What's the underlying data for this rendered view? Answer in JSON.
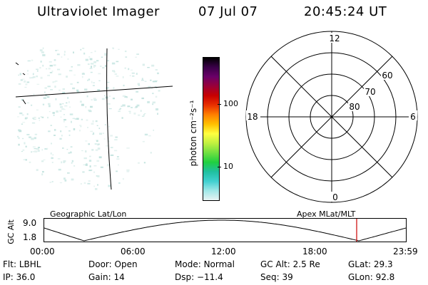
{
  "header": {
    "title": "Ultraviolet Imager",
    "date": "07 Jul 07",
    "time": "20:45:24 UT"
  },
  "colorbar": {
    "unit_label": "photon cm⁻²s⁻¹",
    "ticks": [
      "100",
      "10"
    ],
    "colors": [
      "#000000",
      "#3a0048",
      "#6a0068",
      "#9a0038",
      "#c80000",
      "#e83000",
      "#ff8000",
      "#ffc000",
      "#ffff40",
      "#c0f040",
      "#70e040",
      "#20d040",
      "#20c0a0",
      "#40d0d0",
      "#a0e8e8",
      "#e8f4f4"
    ]
  },
  "polar_plot": {
    "top_label": "12",
    "bottom_label": "0",
    "left_label": "18",
    "right_label": "6",
    "ring_labels": [
      "60",
      "70",
      "80"
    ]
  },
  "timeline": {
    "left_label": "Geographic Lat/Lon",
    "right_label": "Apex MLat/MLT",
    "y_axis_label": "GC Alt",
    "y_ticks": [
      "9.0",
      "1.8"
    ],
    "x_ticks": [
      "00:00",
      "06:00",
      "12:00",
      "18:00",
      "23:59"
    ],
    "marker_color": "#cc0000"
  },
  "info": {
    "flt_label": "Flt:",
    "flt_value": "LBHL",
    "ip_label": "IP:",
    "ip_value": "36.0",
    "door_label": "Door:",
    "door_value": "Open",
    "gain_label": "Gain:",
    "gain_value": "14",
    "mode_label": "Mode:",
    "mode_value": "Normal",
    "dsp_label": "Dsp:",
    "dsp_value": "−11.4",
    "gcalt_label": "GC Alt:",
    "gcalt_value": "2.5 Re",
    "seq_label": "Seq:",
    "seq_value": "39",
    "glat_label": "GLat:",
    "glat_value": "29.3",
    "glon_label": "GLon:",
    "glon_value": "92.8"
  },
  "accent_color": "#d8eeee"
}
